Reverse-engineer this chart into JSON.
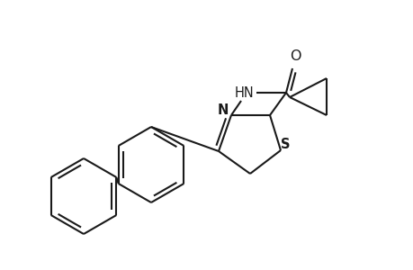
{
  "background_color": "#ffffff",
  "line_color": "#1a1a1a",
  "line_width": 1.5,
  "font_size": 10.5,
  "atoms": {
    "S_label": "S",
    "N_label": "N",
    "NH_label": "HN",
    "O_label": "O"
  },
  "xlim": [
    0,
    460
  ],
  "ylim": [
    0,
    300
  ]
}
